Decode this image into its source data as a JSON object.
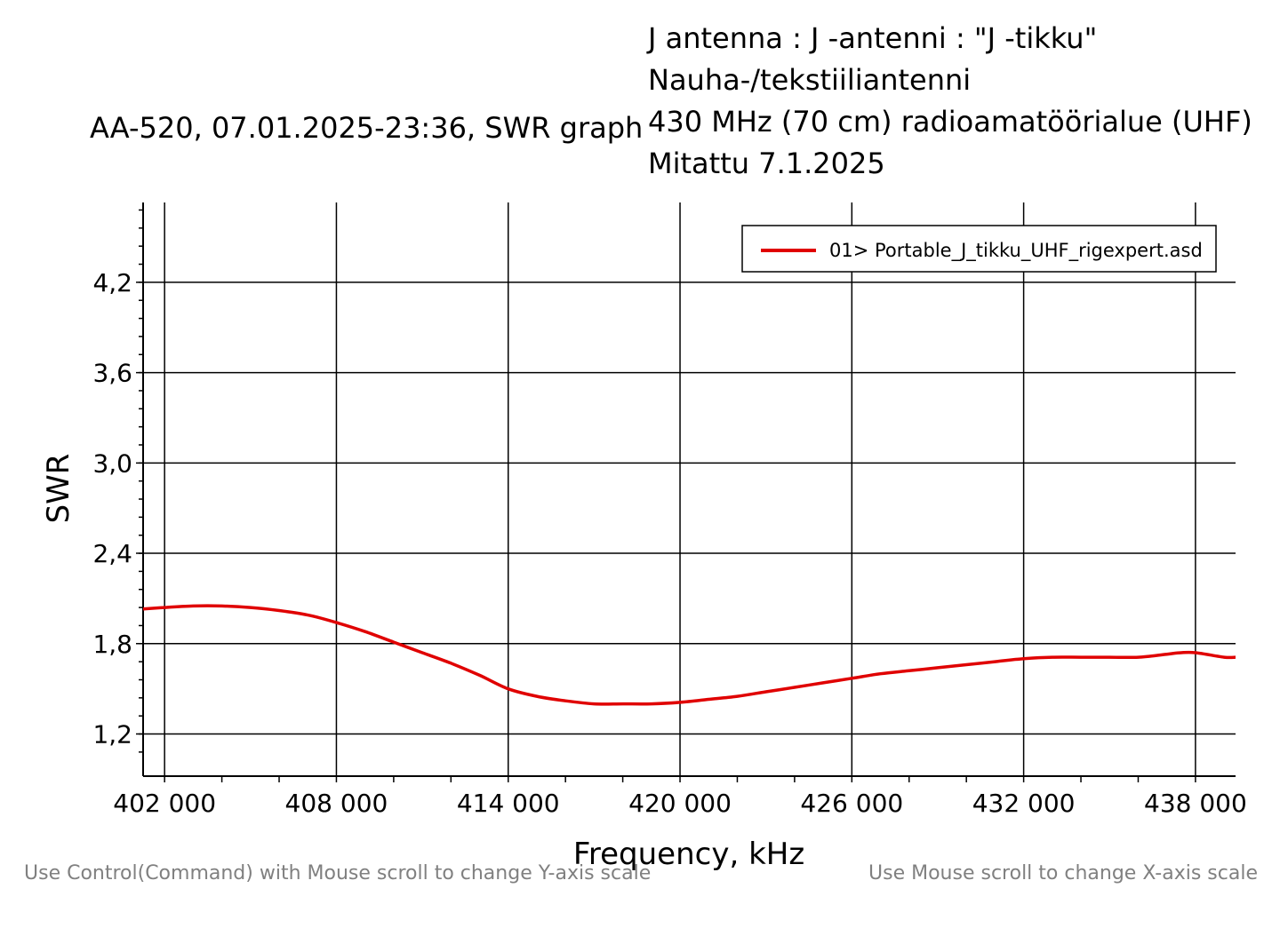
{
  "header": {
    "graph_title": "AA-520, 07.01.2025-23:36, SWR graph",
    "notes": [
      "J antenna : J -antenni : \"J -tikku\"",
      "Nauha-/tekstiiliantenni",
      "430 MHz (70 cm) radioamatöörialue (UHF)",
      "Mitattu 7.1.2025"
    ]
  },
  "hints": {
    "y_scale": "Use Control(Command) with Mouse scroll to change Y-axis scale",
    "x_scale": "Use Mouse scroll to change X-axis scale"
  },
  "colors": {
    "series": "#e00000",
    "grid": "#000000",
    "hint_text": "#808080"
  },
  "chart_data": {
    "type": "line",
    "title": "AA-520, 07.01.2025-23:36, SWR graph",
    "xlabel": "Frequency, kHz",
    "ylabel": "SWR",
    "xlim": [
      401250,
      439400
    ],
    "ylim": [
      0.92,
      4.73
    ],
    "grid": true,
    "legend_position": "top-right",
    "x_ticks": [
      402000,
      408000,
      414000,
      420000,
      426000,
      432000,
      438000
    ],
    "x_tick_labels": [
      "402 000",
      "408 000",
      "414 000",
      "420 000",
      "426 000",
      "432 000",
      "438 000"
    ],
    "y_ticks": [
      1.2,
      1.8,
      2.4,
      3.0,
      3.6,
      4.2
    ],
    "y_tick_labels": [
      "1,2",
      "1,8",
      "2,4",
      "3,0",
      "3,6",
      "4,2"
    ],
    "series": [
      {
        "name": "01> Portable_J_tikku_UHF_rigexpert.asd",
        "x": [
          401250,
          402000,
          403000,
          404000,
          405000,
          406000,
          407000,
          408000,
          409000,
          410000,
          411000,
          412000,
          413000,
          414000,
          415000,
          416000,
          417000,
          418000,
          419000,
          420000,
          421000,
          422000,
          423000,
          424000,
          425000,
          426000,
          427000,
          428000,
          429000,
          430000,
          431000,
          432000,
          433000,
          434000,
          435000,
          436000,
          437000,
          437500,
          438000,
          439000,
          439400
        ],
        "y": [
          2.03,
          2.04,
          2.05,
          2.05,
          2.04,
          2.02,
          1.99,
          1.94,
          1.88,
          1.81,
          1.74,
          1.67,
          1.59,
          1.5,
          1.45,
          1.42,
          1.4,
          1.4,
          1.4,
          1.41,
          1.43,
          1.45,
          1.48,
          1.51,
          1.54,
          1.57,
          1.6,
          1.62,
          1.64,
          1.66,
          1.68,
          1.7,
          1.71,
          1.71,
          1.71,
          1.71,
          1.73,
          1.74,
          1.74,
          1.71,
          1.71
        ]
      }
    ]
  }
}
